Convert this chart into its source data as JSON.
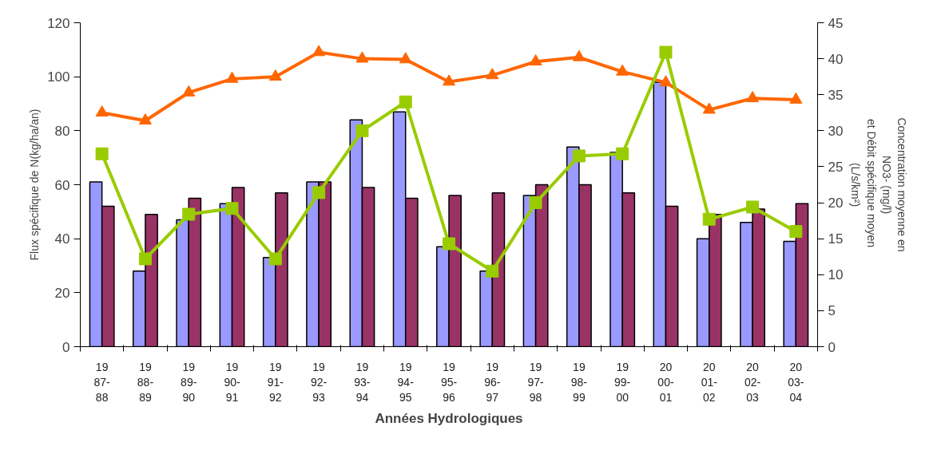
{
  "chart_data": {
    "type": "bar",
    "xlabel": "Années Hydrologiques",
    "ylabel": "Flux spécifique de N(kg/ha/an)",
    "y2label": "Concentration moyenne en\nNO3- (mg/l)\net Débit  spécifique moyen\n(L/s/km²)",
    "categories": [
      "19\n87-\n88",
      "19\n88-\n89",
      "19\n89-\n90",
      "19\n90-\n91",
      "19\n91-\n92",
      "19\n92-\n93",
      "19\n93-\n94",
      "19\n94-\n95",
      "19\n95-\n96",
      "19\n96-\n97",
      "19\n97-\n98",
      "19\n98-\n99",
      "19\n99-\n00",
      "20\n00-\n01",
      "20\n01-\n02",
      "20\n02-\n03",
      "20\n03-\n04"
    ],
    "series": [
      {
        "color": "#9999ff",
        "values": [
          61,
          28,
          47,
          53,
          33,
          61,
          84,
          87,
          37,
          28,
          56,
          74,
          72,
          98,
          40,
          46,
          39
        ]
      },
      {
        "color": "#993366",
        "values": [
          52,
          49,
          55,
          59,
          57,
          61,
          59,
          55,
          56,
          57,
          60,
          60,
          57,
          52,
          49,
          51,
          53
        ]
      },
      {
        "type": "line",
        "axis": "y2",
        "marker": "triangle",
        "color": "#ff6600",
        "values": [
          32.5,
          31.4,
          35.3,
          37.2,
          37.5,
          40.9,
          40.0,
          39.9,
          36.8,
          37.7,
          39.6,
          40.2,
          38.2,
          36.7,
          32.9,
          34.5,
          34.3
        ]
      },
      {
        "type": "line",
        "axis": "y2",
        "marker": "square",
        "color": "#99cc00",
        "values": [
          26.8,
          12.2,
          18.4,
          19.2,
          12.2,
          21.4,
          30.0,
          34.0,
          14.3,
          10.5,
          20.0,
          26.5,
          26.8,
          40.9,
          17.7,
          19.4,
          16.0
        ]
      }
    ],
    "ylim": [
      0,
      120
    ],
    "yticks": [
      0,
      20,
      40,
      60,
      80,
      100,
      120
    ],
    "y2lim": [
      0,
      45
    ],
    "y2ticks": [
      0,
      5,
      10,
      15,
      20,
      25,
      30,
      35,
      40,
      45
    ],
    "grid": false
  }
}
